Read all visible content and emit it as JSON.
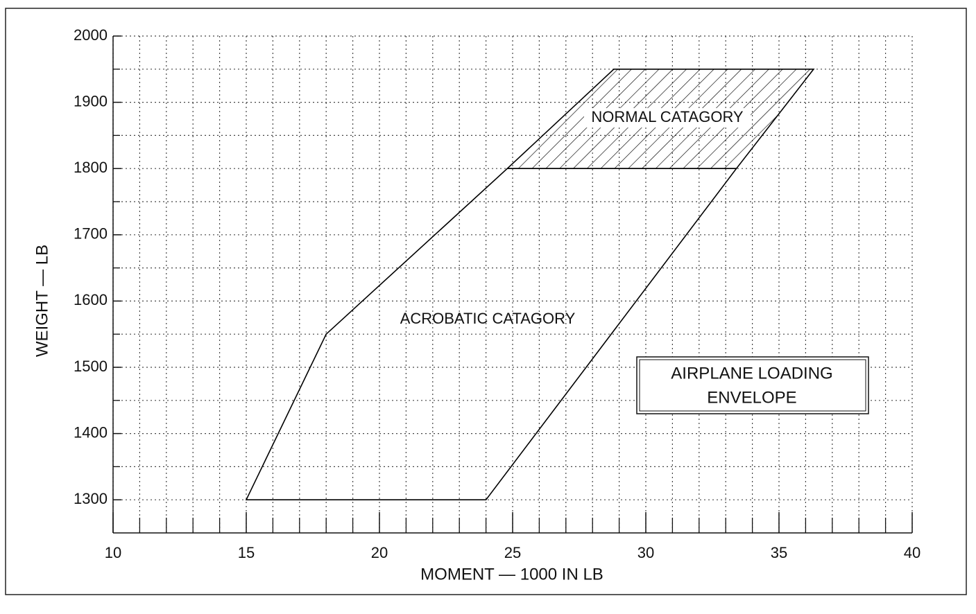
{
  "chart_data": {
    "type": "envelope",
    "title": "AIRPLANE LOADING ENVELOPE",
    "title_lines": [
      "AIRPLANE LOADING",
      "ENVELOPE"
    ],
    "x_label": "MOMENT — 1000 IN LB",
    "y_label": "WEIGHT — LB",
    "xlim": [
      10,
      40
    ],
    "ylim": [
      1250,
      2000
    ],
    "xticks": [
      10,
      15,
      20,
      25,
      30,
      35,
      40
    ],
    "yticks": [
      1300,
      1400,
      1500,
      1600,
      1700,
      1800,
      1900,
      2000
    ],
    "x_minor_ticks": [
      11,
      12,
      13,
      14,
      16,
      17,
      18,
      19,
      21,
      22,
      23,
      24,
      26,
      27,
      28,
      29,
      31,
      32,
      33,
      34,
      36,
      37,
      38,
      39
    ],
    "y_minor_ticks": [
      1350,
      1450,
      1550,
      1650,
      1750,
      1850,
      1950
    ],
    "grid": true,
    "series": [
      {
        "name": "ACROBATIC CATAGORY",
        "color": "#000000",
        "hatch": false,
        "x": [
          15,
          18,
          24.8,
          33.4,
          24
        ],
        "values": [
          1300,
          1550,
          1800,
          1800,
          1300
        ]
      },
      {
        "name": "NORMAL CATAGORY",
        "color": "#000000",
        "hatch": true,
        "x": [
          24.8,
          28.8,
          36.3,
          33.4
        ],
        "values": [
          1800,
          1950,
          1950,
          1800
        ]
      }
    ]
  }
}
